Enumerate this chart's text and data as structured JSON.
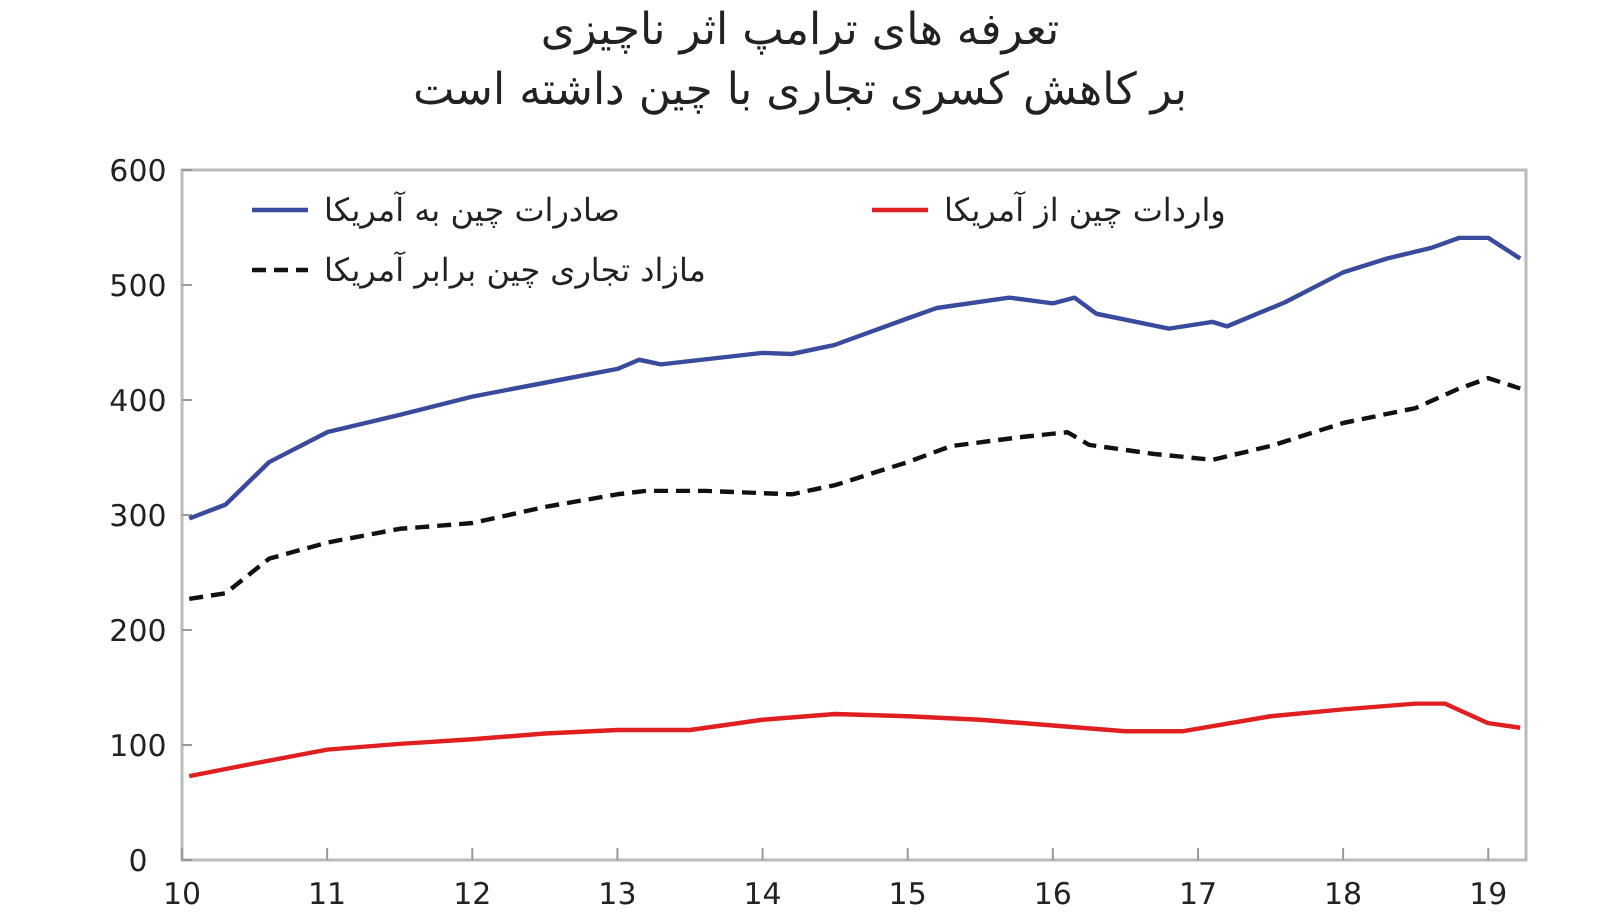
{
  "chart_data": {
    "type": "line",
    "title": "تعرفه های ترامپ اثر ناچیزی\nبر کاهش کسری تجاری با چین داشته است",
    "xlim": [
      10,
      19.26
    ],
    "xticks": [
      10,
      11,
      12,
      13,
      14,
      15,
      16,
      17,
      18,
      19
    ],
    "ylim": [
      0,
      600
    ],
    "yticks": [
      0,
      100,
      200,
      300,
      400,
      500,
      600
    ],
    "grid": false,
    "legend": "top",
    "marker": "none",
    "series": [
      {
        "name": "صادرات چین به آمریکا",
        "color": "#3a4a9c",
        "line_style": "solid",
        "x": [
          10.05,
          10.3,
          10.6,
          11,
          11.5,
          12,
          12.5,
          13,
          13.15,
          13.3,
          14,
          14.2,
          14.5,
          15,
          15.2,
          15.7,
          16,
          16.15,
          16.3,
          16.8,
          17.1,
          17.2,
          17.6,
          18,
          18.3,
          18.6,
          18.8,
          19,
          19.22
        ],
        "values": [
          297,
          309,
          346,
          372,
          387,
          403,
          415,
          427,
          435,
          431,
          441,
          440,
          448,
          471,
          480,
          489,
          484,
          489,
          475,
          462,
          468,
          464,
          485,
          511,
          523,
          532,
          541,
          541,
          523
        ]
      },
      {
        "name": "واردات چین از آمریکا",
        "color": "#e02020",
        "line_style": "solid",
        "x": [
          10.05,
          10.5,
          11,
          11.5,
          12,
          12.5,
          13,
          13.5,
          14,
          14.5,
          15,
          15.5,
          16,
          16.5,
          16.9,
          17.5,
          18,
          18.5,
          18.7,
          19,
          19.22
        ],
        "values": [
          73,
          84,
          96,
          101,
          105,
          110,
          113,
          113,
          122,
          127,
          125,
          122,
          117,
          112,
          112,
          125,
          131,
          136,
          136,
          119,
          115
        ]
      },
      {
        "name": "مازاد تجاری چین برابر آمریکا",
        "color": "#111111",
        "line_style": "dashed",
        "x": [
          10.05,
          10.3,
          10.6,
          11,
          11.5,
          12,
          12.5,
          13,
          13.2,
          13.6,
          14.2,
          14.5,
          15,
          15.3,
          15.8,
          16.1,
          16.25,
          16.7,
          17.1,
          17.5,
          18,
          18.5,
          18.8,
          19,
          19.22
        ],
        "values": [
          227,
          232,
          262,
          276,
          288,
          293,
          307,
          318,
          321,
          321,
          318,
          326,
          346,
          360,
          368,
          372,
          361,
          353,
          348,
          360,
          380,
          393,
          410,
          419,
          410
        ]
      }
    ]
  }
}
